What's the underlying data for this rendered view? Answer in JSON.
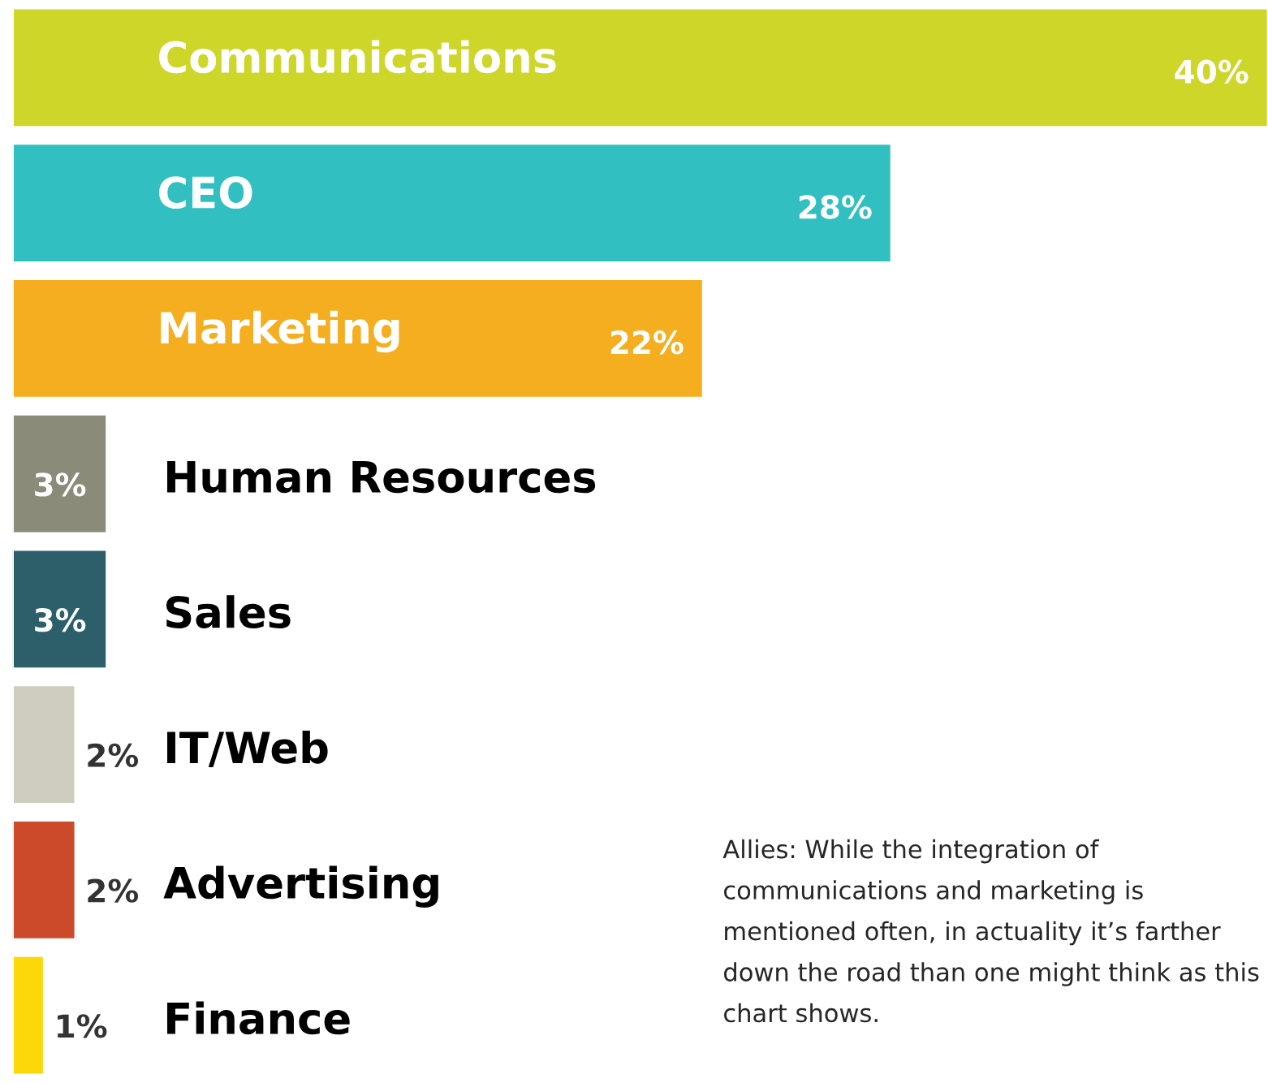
{
  "chart_data": {
    "type": "bar",
    "orientation": "horizontal",
    "categories": [
      "Communications",
      "CEO",
      "Marketing",
      "Human Resources",
      "Sales",
      "IT/Web",
      "Advertising",
      "Finance"
    ],
    "values": [
      40,
      28,
      22,
      3,
      3,
      2,
      2,
      1
    ],
    "colors": [
      "#cdd629",
      "#31bfc1",
      "#f5ae1f",
      "#8b8b7a",
      "#2d5f6a",
      "#cfcdbf",
      "#cc4a2a",
      "#fcd80a"
    ],
    "value_labels": [
      "40%",
      "28%",
      "22%",
      "3%",
      "3%",
      "2%",
      "2%",
      "1%"
    ],
    "annotations": [
      "Allies: While the integration of communications and marketing is mentioned often, in actuality it’s farther down the road than one might think as this chart shows."
    ]
  }
}
